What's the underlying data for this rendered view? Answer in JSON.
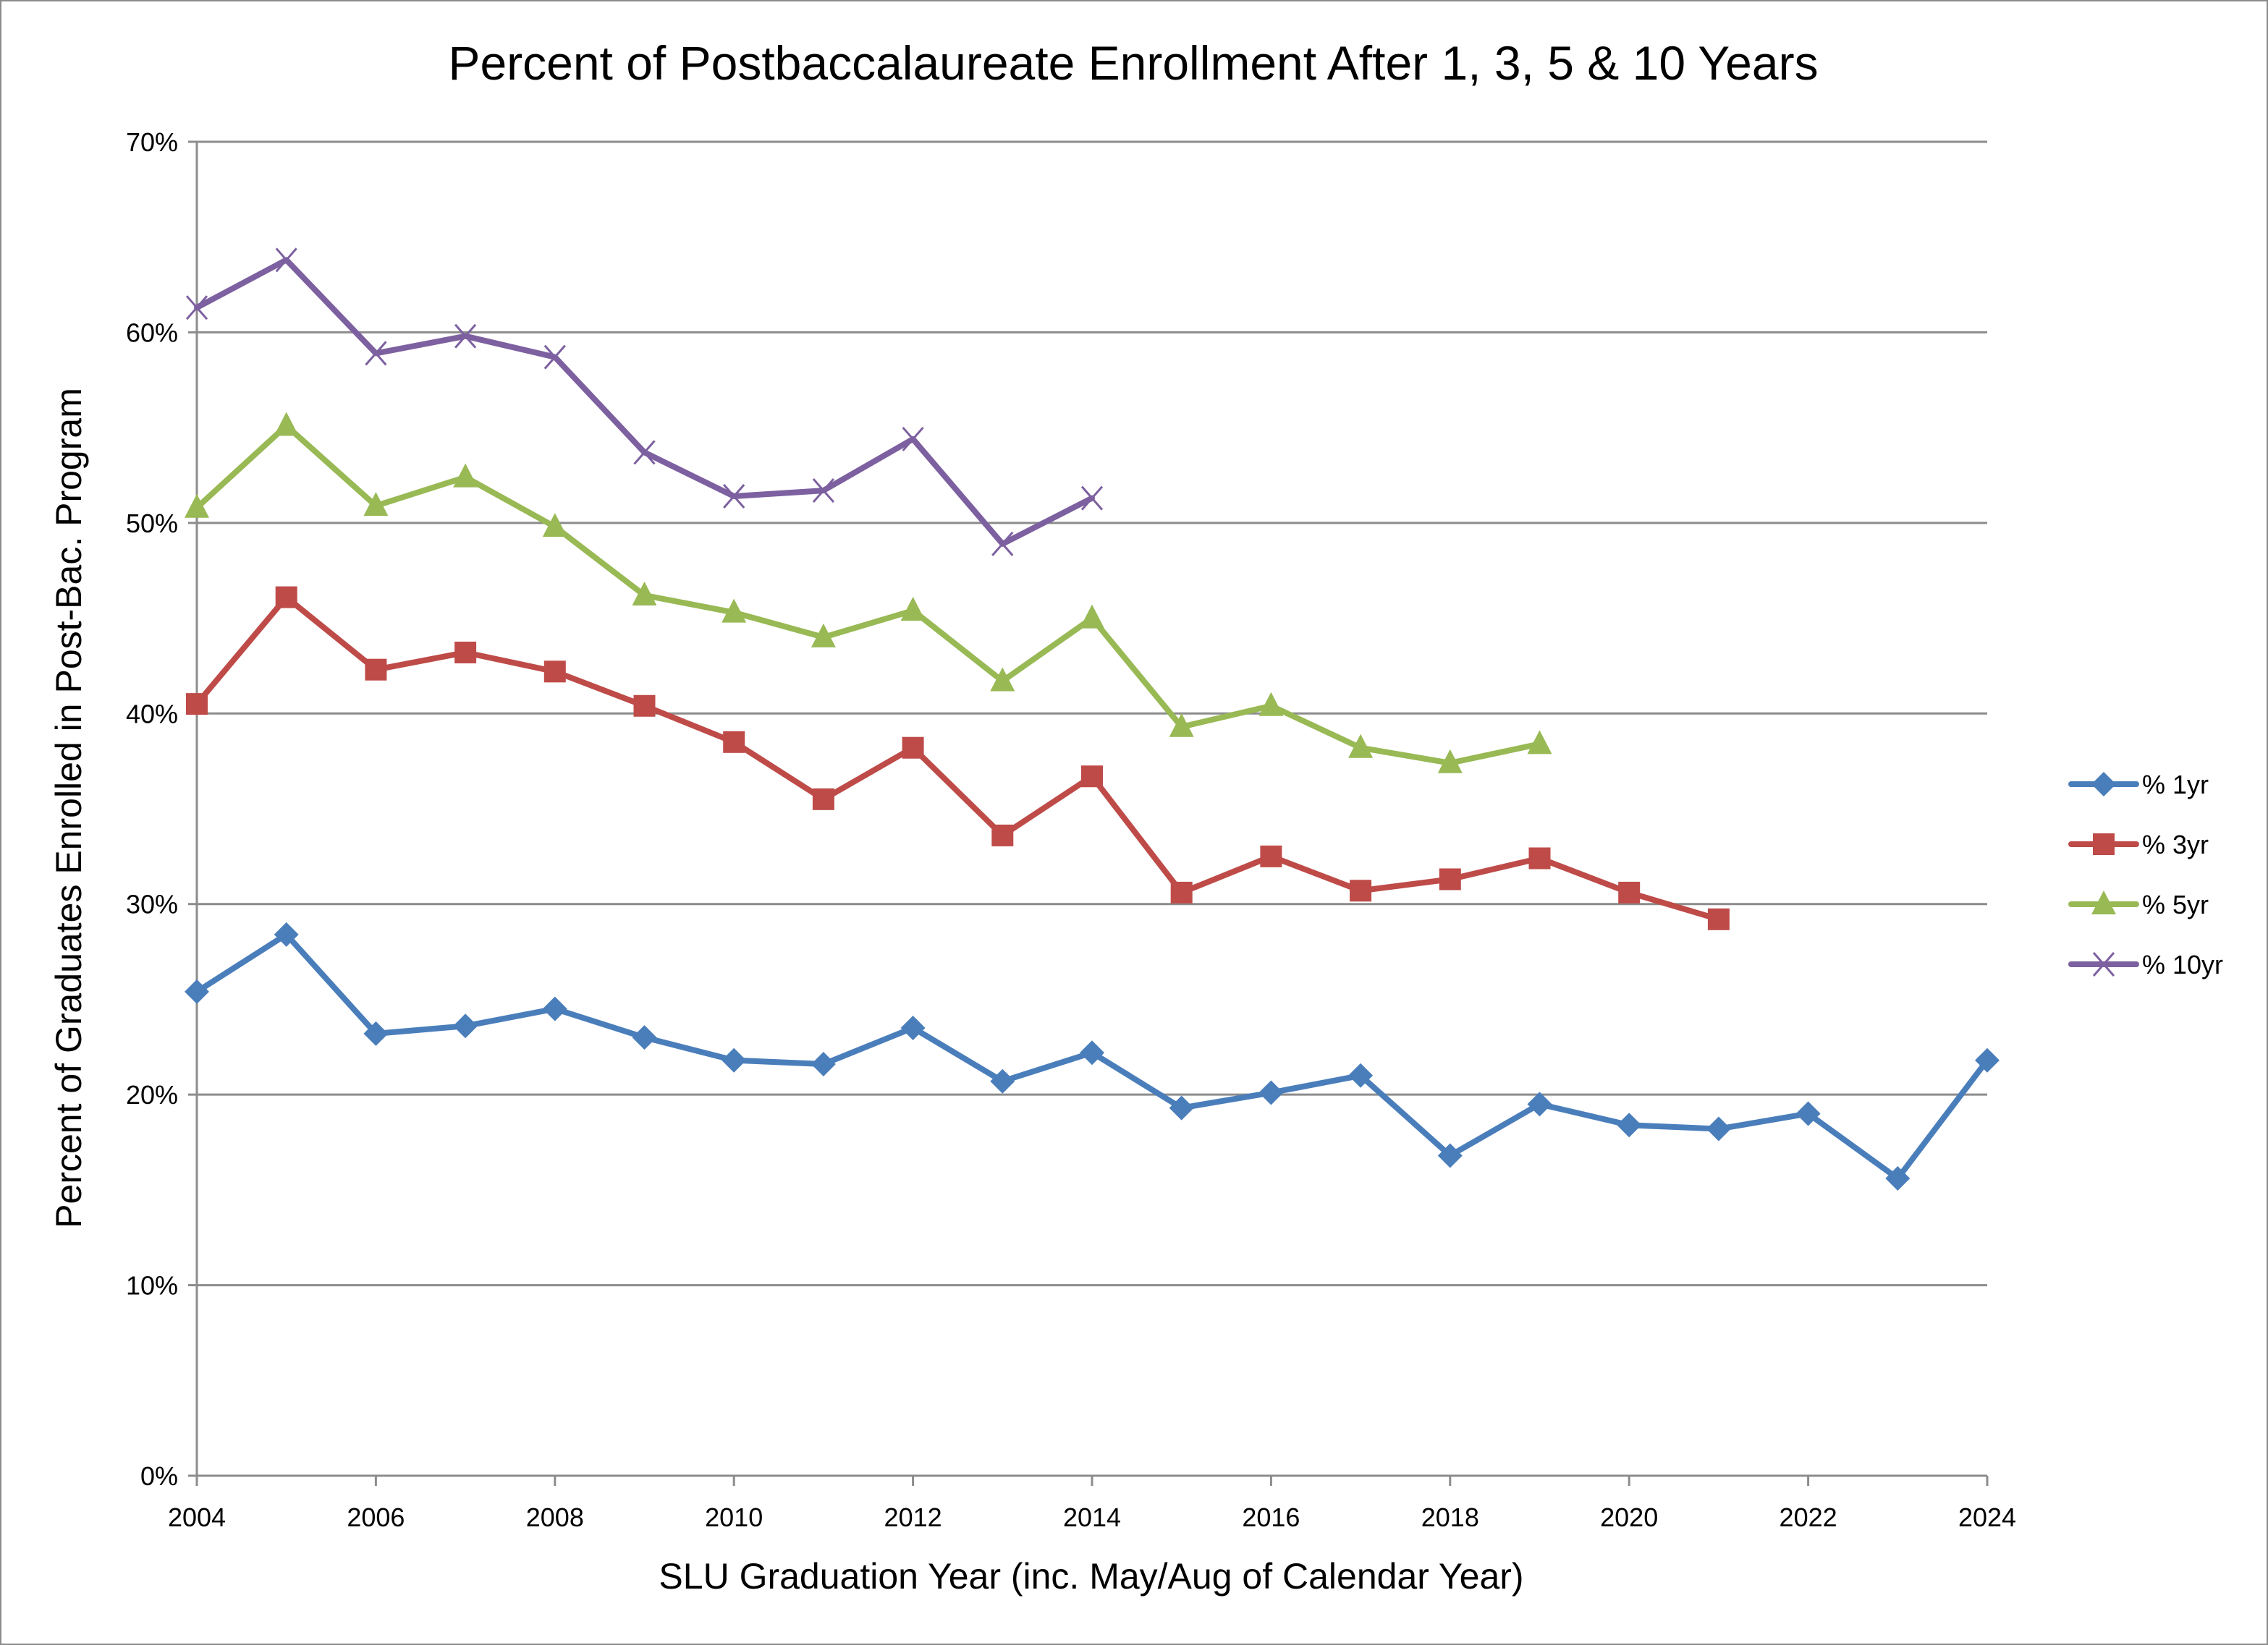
{
  "chart_data": {
    "type": "line",
    "title": "Percent of Postbaccalaureate Enrollment After 1, 3, 5 & 10 Years",
    "xlabel": "SLU Graduation Year (inc. May/Aug of Calendar Year)",
    "ylabel": "Percent of Graduates Enrolled in Post-Bac. Program",
    "x": [
      2004,
      2005,
      2006,
      2007,
      2008,
      2009,
      2010,
      2011,
      2012,
      2013,
      2014,
      2015,
      2016,
      2017,
      2018,
      2019,
      2020,
      2021,
      2022,
      2023,
      2024
    ],
    "xlim": [
      2004,
      2024
    ],
    "x_ticks": [
      "2004",
      "2006",
      "2008",
      "2010",
      "2012",
      "2014",
      "2016",
      "2018",
      "2020",
      "2022",
      "2024"
    ],
    "x_tick_values": [
      2004,
      2006,
      2008,
      2010,
      2012,
      2014,
      2016,
      2018,
      2020,
      2022,
      2024
    ],
    "ylim": [
      0,
      70
    ],
    "y_ticks": [
      "0%",
      "10%",
      "20%",
      "30%",
      "40%",
      "50%",
      "60%",
      "70%"
    ],
    "y_tick_values": [
      0,
      10,
      20,
      30,
      40,
      50,
      60,
      70
    ],
    "grid": "horizontal",
    "legend_position": "right",
    "series": [
      {
        "name": "% 1yr",
        "color": "#4a7ebb",
        "marker": "diamond",
        "values": [
          25.4,
          28.4,
          23.2,
          23.6,
          24.5,
          23.0,
          21.8,
          21.6,
          23.5,
          20.7,
          22.2,
          19.3,
          20.1,
          21.0,
          16.8,
          19.5,
          18.4,
          18.2,
          19.0,
          15.6,
          21.8
        ]
      },
      {
        "name": "% 3yr",
        "color": "#be4b48",
        "marker": "square",
        "values": [
          40.5,
          46.1,
          42.3,
          43.2,
          42.2,
          40.4,
          38.5,
          35.5,
          38.2,
          33.6,
          36.7,
          30.6,
          32.5,
          30.7,
          31.3,
          32.4,
          30.6,
          29.2,
          null,
          null,
          null
        ]
      },
      {
        "name": "% 5yr",
        "color": "#98b954",
        "marker": "triangle",
        "values": [
          50.8,
          55.1,
          50.9,
          52.4,
          49.8,
          46.2,
          45.3,
          44.0,
          45.4,
          41.7,
          45.0,
          39.3,
          40.4,
          38.2,
          37.4,
          38.4,
          null,
          null,
          null,
          null,
          null
        ]
      },
      {
        "name": "% 10yr",
        "color": "#7d60a0",
        "marker": "x",
        "values": [
          61.3,
          63.8,
          58.9,
          59.8,
          58.7,
          53.7,
          51.4,
          51.7,
          54.4,
          48.9,
          51.3,
          null,
          null,
          null,
          null,
          null,
          null,
          null,
          null,
          null,
          null
        ]
      }
    ]
  }
}
